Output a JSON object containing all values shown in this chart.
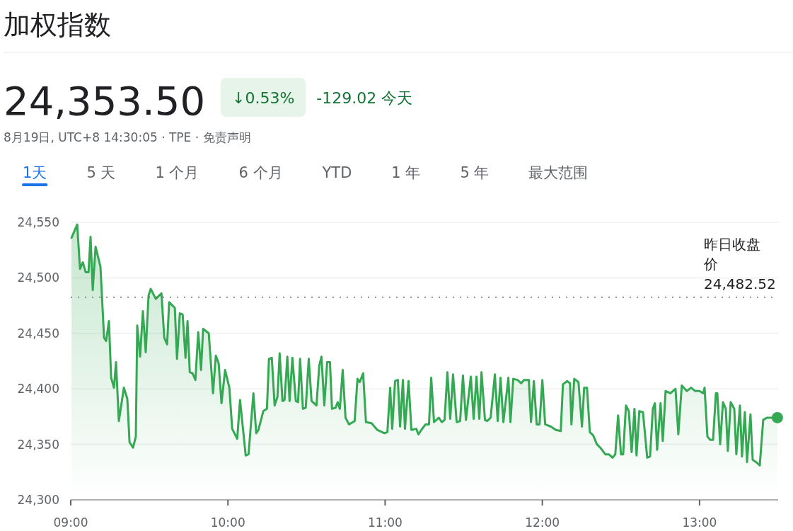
{
  "chart_data": {
    "type": "area",
    "title": "加权指数",
    "annotations": [
      "24,353.50",
      "↓0.53%",
      "-129.02 今天",
      "8月19日, UTC+8 14:30:05 · TPE · 免责声明",
      "1天",
      "5 天",
      "1 个月",
      "6 个月",
      "YTD",
      "1 年",
      "5 年",
      "最大范围"
    ],
    "xlim": [
      9,
      13.5
    ],
    "ylim": [
      24300,
      24550
    ],
    "xticks": [
      {
        "value": 9,
        "label": "09:00"
      },
      {
        "value": 10,
        "label": "10:00"
      },
      {
        "value": 11,
        "label": "11:00"
      },
      {
        "value": 12,
        "label": "12:00"
      },
      {
        "value": 13,
        "label": "13:00"
      }
    ],
    "yticks": [
      {
        "value": 24300,
        "label": "24,300"
      },
      {
        "value": 24350,
        "label": "24,350"
      },
      {
        "value": 24400,
        "label": "24,400"
      },
      {
        "value": 24450,
        "label": "24,450"
      },
      {
        "value": 24500,
        "label": "24,500"
      },
      {
        "value": 24550,
        "label": "24,550"
      }
    ],
    "grid": "y",
    "ref_lines": [
      {
        "axis": "y",
        "value": 24482.52,
        "label": "昨日收盘价 24,482.52",
        "color": "#5f6368",
        "line_style": "dotted"
      }
    ],
    "series": [
      {
        "color": "#34a853",
        "x": [
          9.005,
          9.041,
          9.059,
          9.077,
          9.095,
          9.113,
          9.126,
          9.14,
          9.158,
          9.189,
          9.212,
          9.225,
          9.243,
          9.257,
          9.275,
          9.288,
          9.306,
          9.338,
          9.36,
          9.374,
          9.396,
          9.414,
          9.423,
          9.441,
          9.459,
          9.477,
          9.495,
          9.509,
          9.541,
          9.577,
          9.595,
          9.613,
          9.626,
          9.662,
          9.676,
          9.694,
          9.712,
          9.73,
          9.743,
          9.757,
          9.775,
          9.793,
          9.811,
          9.829,
          9.842,
          9.878,
          9.905,
          9.923,
          9.941,
          9.959,
          9.982,
          10.009,
          10.027,
          10.059,
          10.077,
          10.113,
          10.131,
          10.162,
          10.18,
          10.194,
          10.225,
          10.248,
          10.261,
          10.279,
          10.297,
          10.315,
          10.329,
          10.347,
          10.36,
          10.378,
          10.392,
          10.41,
          10.432,
          10.446,
          10.459,
          10.477,
          10.495,
          10.514,
          10.532,
          10.563,
          10.581,
          10.595,
          10.613,
          10.631,
          10.649,
          10.662,
          10.685,
          10.698,
          10.712,
          10.73,
          10.748,
          10.77,
          10.806,
          10.824,
          10.838,
          10.86,
          10.878,
          10.914,
          10.932,
          10.95,
          10.995,
          11.014,
          11.032,
          11.045,
          11.063,
          11.081,
          11.095,
          11.113,
          11.126,
          11.149,
          11.167,
          11.198,
          11.212,
          11.23,
          11.257,
          11.279,
          11.293,
          11.311,
          11.342,
          11.36,
          11.378,
          11.396,
          11.414,
          11.432,
          11.455,
          11.477,
          11.495,
          11.514,
          11.545,
          11.563,
          11.581,
          11.599,
          11.613,
          11.635,
          11.649,
          11.671,
          11.698,
          11.716,
          11.734,
          11.752,
          11.784,
          11.797,
          11.815,
          11.842,
          11.865,
          11.883,
          11.914,
          11.928,
          11.946,
          11.964,
          11.982,
          12.0,
          12.018,
          12.054,
          12.086,
          12.117,
          12.131,
          12.158,
          12.176,
          12.185,
          12.203,
          12.23,
          12.252,
          12.266,
          12.284,
          12.302,
          12.324,
          12.347,
          12.369,
          12.401,
          12.423,
          12.446,
          12.464,
          12.482,
          12.5,
          12.514,
          12.532,
          12.55,
          12.568,
          12.586,
          12.599,
          12.617,
          12.64,
          12.667,
          12.685,
          12.703,
          12.716,
          12.73,
          12.752,
          12.766,
          12.784,
          12.815,
          12.847,
          12.865,
          12.887,
          12.919,
          12.946,
          12.973,
          13.0,
          13.023,
          13.032,
          13.05,
          13.068,
          13.086,
          13.104,
          13.113,
          13.131,
          13.149,
          13.167,
          13.18,
          13.198,
          13.221,
          13.234,
          13.257,
          13.27,
          13.288,
          13.302,
          13.324,
          13.338,
          13.36,
          13.383,
          13.405,
          13.428,
          13.495
        ],
        "values": [
          24536,
          24548,
          24508,
          24514,
          24505,
          24505,
          24537,
          24489,
          24528,
          24510,
          24446,
          24443,
          24461,
          24410,
          24401,
          24424,
          24371,
          24401,
          24391,
          24352,
          24347,
          24357,
          24457,
          24429,
          24470,
          24433,
          24484,
          24490,
          24481,
          24486,
          24446,
          24440,
          24478,
          24473,
          24427,
          24468,
          24467,
          24428,
          24461,
          24415,
          24414,
          24408,
          24451,
          24417,
          24454,
          24450,
          24396,
          24430,
          24423,
          24387,
          24417,
          24401,
          24364,
          24355,
          24390,
          24340,
          24341,
          24396,
          24360,
          24363,
          24380,
          24382,
          24427,
          24428,
          24385,
          24393,
          24432,
          24389,
          24390,
          24429,
          24389,
          24428,
          24389,
          24388,
          24427,
          24382,
          24383,
          24427,
          24389,
          24385,
          24421,
          24429,
          24385,
          24424,
          24424,
          24382,
          24383,
          24388,
          24382,
          24417,
          24374,
          24368,
          24371,
          24409,
          24406,
          24414,
          24370,
          24369,
          24366,
          24363,
          24360,
          24361,
          24401,
          24364,
          24407,
          24408,
          24366,
          24408,
          24364,
          24407,
          24363,
          24364,
          24359,
          24363,
          24368,
          24368,
          24410,
          24370,
          24374,
          24370,
          24372,
          24415,
          24373,
          24413,
          24370,
          24371,
          24412,
          24372,
          24411,
          24373,
          24411,
          24373,
          24415,
          24372,
          24371,
          24374,
          24413,
          24371,
          24410,
          24370,
          24410,
          24370,
          24409,
          24408,
          24405,
          24408,
          24408,
          24370,
          24407,
          24368,
          24368,
          24408,
          24368,
          24366,
          24363,
          24362,
          24404,
          24407,
          24405,
          24368,
          24409,
          24406,
          24366,
          24401,
          24401,
          24361,
          24358,
          24350,
          24347,
          24341,
          24341,
          24338,
          24341,
          24376,
          24341,
          24341,
          24385,
          24380,
          24343,
          24382,
          24340,
          24380,
          24379,
          24338,
          24339,
          24382,
          24387,
          24345,
          24387,
          24353,
          24398,
          24396,
          24400,
          24359,
          24403,
          24398,
          24401,
          24398,
          24398,
          24396,
          24401,
          24357,
          24354,
          24354,
          24396,
          24396,
          24350,
          24388,
          24382,
          24344,
          24388,
          24382,
          24341,
          24385,
          24339,
          24379,
          24334,
          24377,
          24336,
          24334,
          24331,
          24372,
          24374,
          24374
        ]
      }
    ]
  }
}
